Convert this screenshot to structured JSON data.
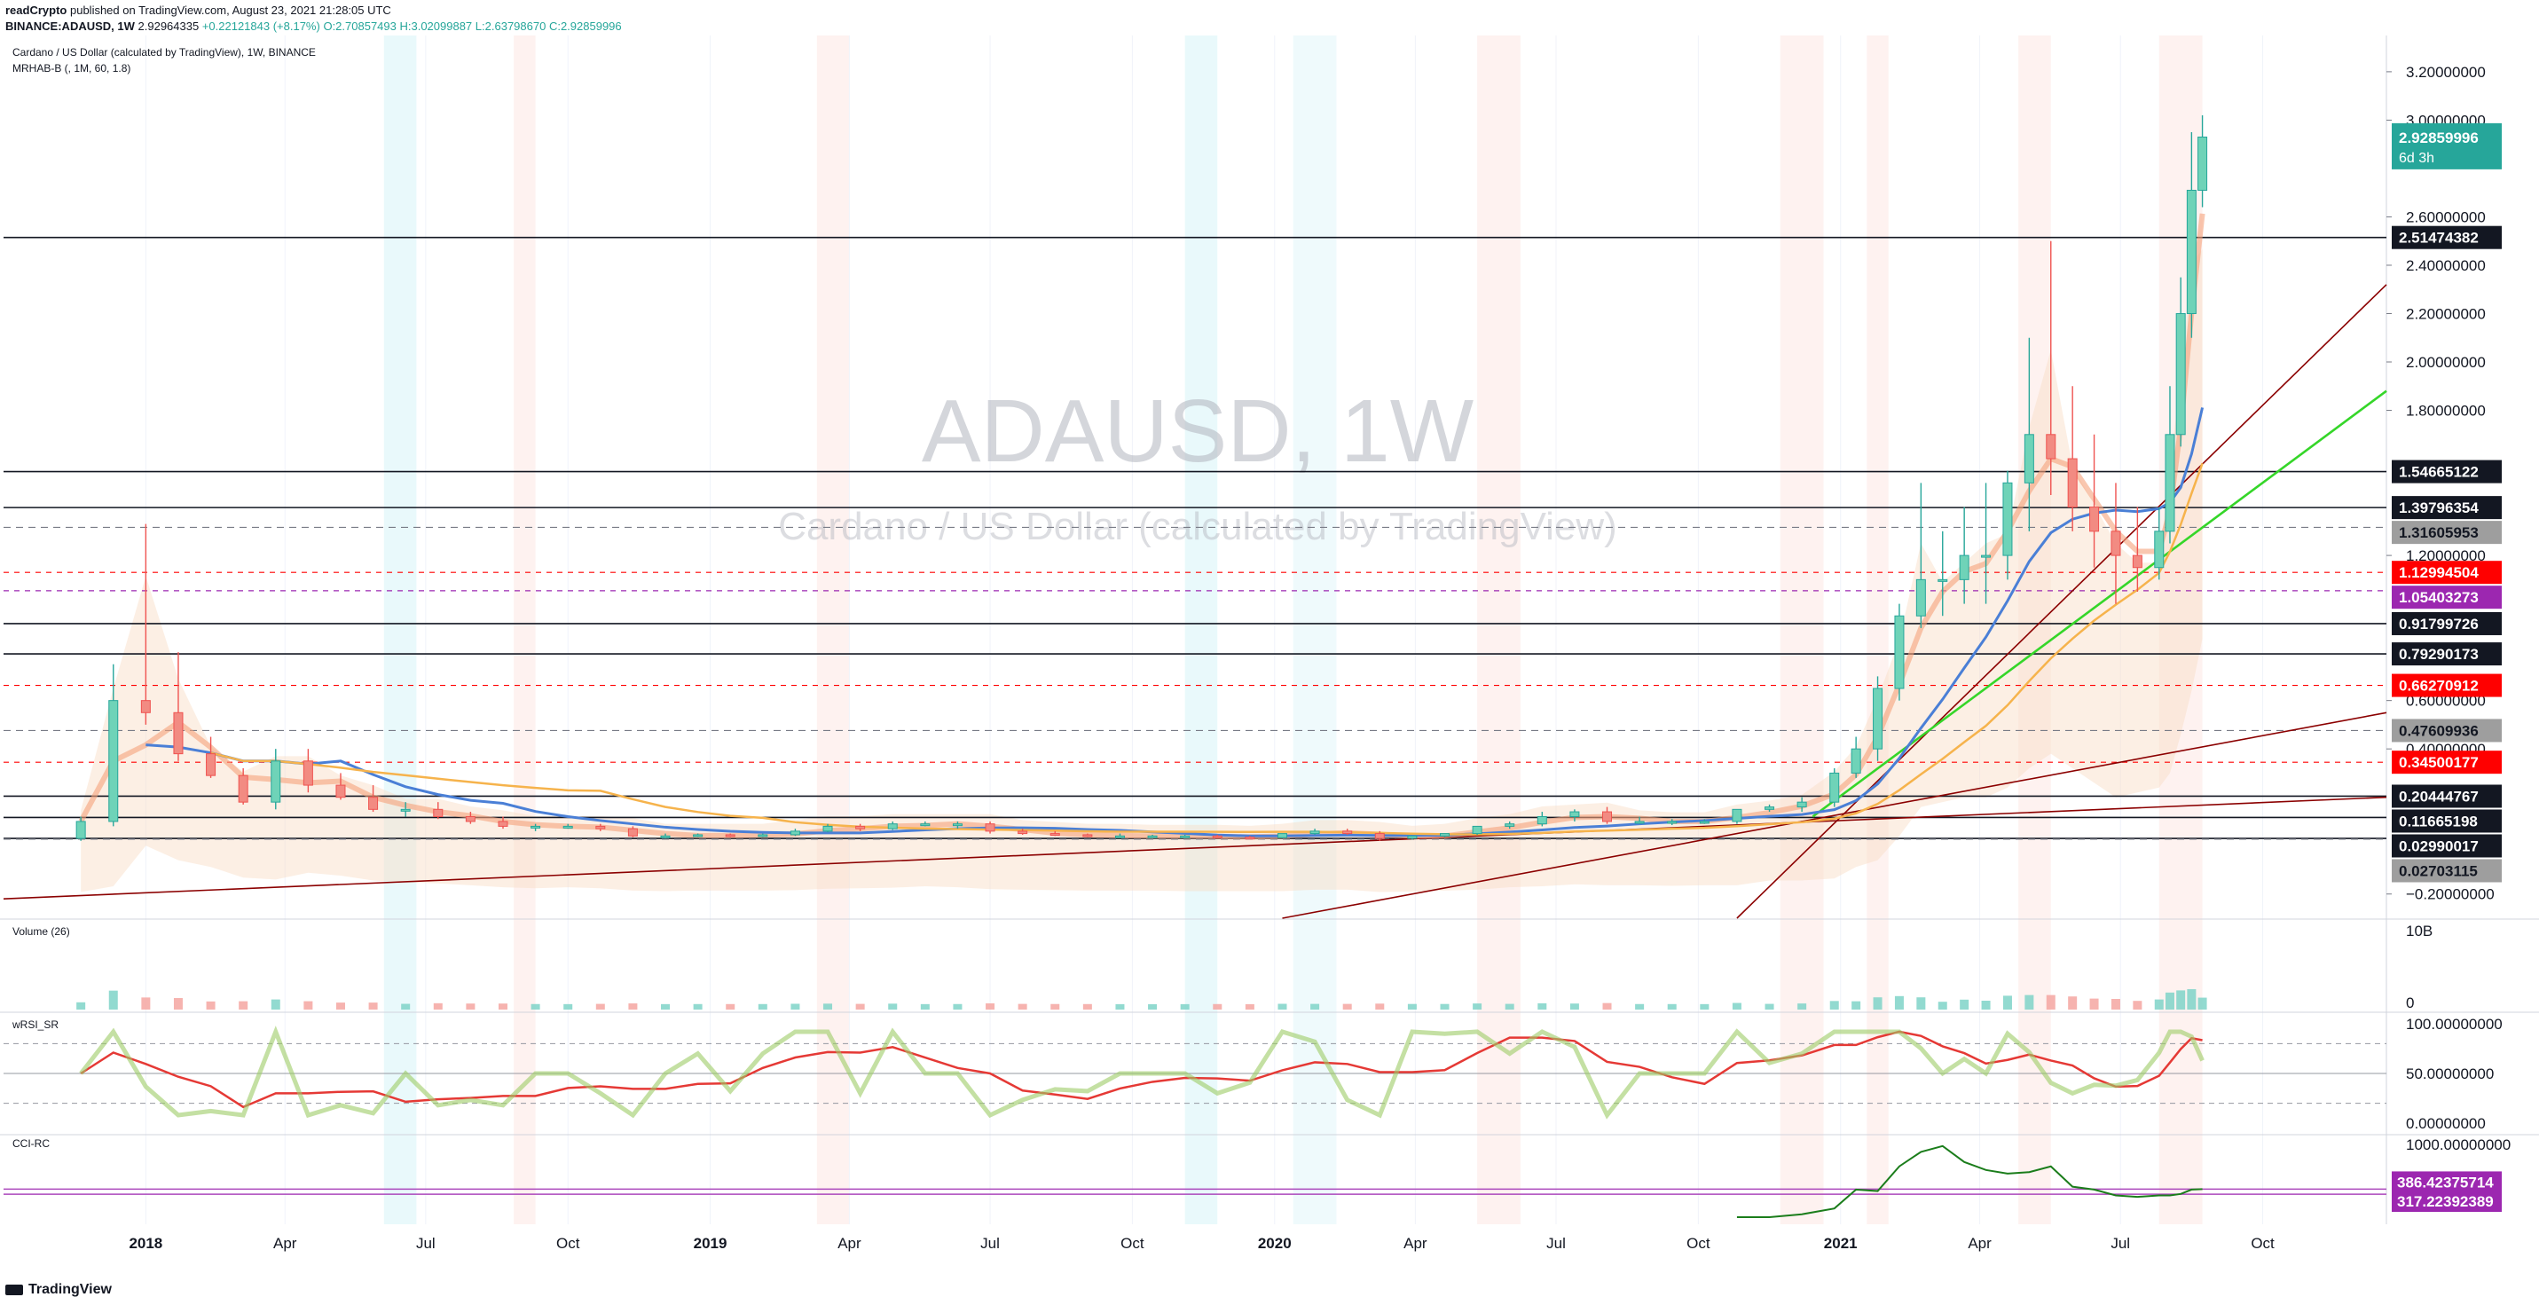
{
  "header": {
    "publisher": "readCrypto",
    "published_text": "published on TradingView.com, August 23, 2021 21:28:05 UTC",
    "symbol_line": "BINANCE:ADAUSD, 1W",
    "last_price": "2.92964335",
    "change": "+0.22121843 (+8.17%)",
    "open": "O:2.70857493",
    "high": "H:3.02099887",
    "low": "L:2.63798670",
    "close": "C:2.92859996"
  },
  "legend": {
    "instrument": "Cardano / US Dollar (calculated by TradingView), 1W, BINANCE",
    "indicator": "MRHAB-B (, 1M, 60, 1.8)",
    "volume_label": "Volume (26)",
    "rsi_label": "wRSI_SR",
    "cci_label": "CCI-RC"
  },
  "watermark": {
    "title": "ADAUSD, 1W",
    "subtitle": "Cardano / US Dollar (calculated by TradingView)"
  },
  "footer": {
    "brand": "TradingView"
  },
  "colors": {
    "up": "#26a69a",
    "down": "#ef5350",
    "cyan": "#6fd3e0",
    "salmon": "#f5a27c",
    "blue": "#4a7fd6",
    "orange": "#f6b34c",
    "green": "#35d629",
    "darkred": "#8b0000",
    "red_label": "#ff0000",
    "purple_label": "#9c27b0",
    "teal_label": "#26a69a",
    "grey_label": "#9e9e9e",
    "black_label": "#131722"
  },
  "chart_data": [
    {
      "type": "candlestick",
      "title": "ADAUSD, 1W",
      "subtitle": "Cardano / US Dollar (calculated by TradingView)",
      "xlabel": "",
      "ylabel": "",
      "x_tick_labels": [
        "2018",
        "Apr",
        "Jul",
        "Oct",
        "2019",
        "Apr",
        "Jul",
        "Oct",
        "2020",
        "Apr",
        "Jul",
        "Oct",
        "2021",
        "Apr",
        "Jul",
        "Oct"
      ],
      "y_tick_labels": [
        "3.20000000",
        "3.00000000",
        "2.60000000",
        "2.40000000",
        "2.20000000",
        "2.00000000",
        "1.80000000",
        "1.20000000",
        "0.60000000",
        "0.40000000",
        "-0.20000000"
      ],
      "ylim": [
        -0.3,
        3.35
      ],
      "dates": [
        "2017-11-20",
        "2017-12-11",
        "2018-01-01",
        "2018-01-22",
        "2018-02-12",
        "2018-03-05",
        "2018-03-26",
        "2018-04-16",
        "2018-05-07",
        "2018-05-28",
        "2018-06-18",
        "2018-07-09",
        "2018-07-30",
        "2018-08-20",
        "2018-09-10",
        "2018-10-01",
        "2018-10-22",
        "2018-11-12",
        "2018-12-03",
        "2018-12-24",
        "2019-01-14",
        "2019-02-04",
        "2019-02-25",
        "2019-03-18",
        "2019-04-08",
        "2019-04-29",
        "2019-05-20",
        "2019-06-10",
        "2019-07-01",
        "2019-07-22",
        "2019-08-12",
        "2019-09-02",
        "2019-09-23",
        "2019-10-14",
        "2019-11-04",
        "2019-11-25",
        "2019-12-16",
        "2020-01-06",
        "2020-01-27",
        "2020-02-17",
        "2020-03-09",
        "2020-03-30",
        "2020-04-20",
        "2020-05-11",
        "2020-06-01",
        "2020-06-22",
        "2020-07-13",
        "2020-08-03",
        "2020-08-24",
        "2020-09-14",
        "2020-10-05",
        "2020-10-26",
        "2020-11-16",
        "2020-12-07",
        "2020-12-28",
        "2021-01-11",
        "2021-01-25",
        "2021-02-08",
        "2021-02-22",
        "2021-03-08",
        "2021-03-22",
        "2021-04-05",
        "2021-04-19",
        "2021-05-03",
        "2021-05-17",
        "2021-05-31",
        "2021-06-14",
        "2021-06-28",
        "2021-07-12",
        "2021-07-26",
        "2021-08-02",
        "2021-08-09",
        "2021-08-16",
        "2021-08-23"
      ],
      "series": [
        {
          "name": "ADAUSD",
          "open": [
            0.03,
            0.1,
            0.6,
            0.55,
            0.38,
            0.29,
            0.18,
            0.35,
            0.25,
            0.2,
            0.15,
            0.15,
            0.12,
            0.1,
            0.08,
            0.08,
            0.08,
            0.07,
            0.04,
            0.04,
            0.045,
            0.04,
            0.045,
            0.06,
            0.08,
            0.07,
            0.09,
            0.09,
            0.09,
            0.06,
            0.05,
            0.045,
            0.04,
            0.04,
            0.04,
            0.04,
            0.035,
            0.033,
            0.05,
            0.06,
            0.05,
            0.03,
            0.04,
            0.05,
            0.08,
            0.09,
            0.12,
            0.14,
            0.1,
            0.1,
            0.1,
            0.1,
            0.15,
            0.16,
            0.18,
            0.3,
            0.4,
            0.65,
            0.95,
            1.1,
            1.1,
            1.2,
            1.2,
            1.5,
            1.7,
            1.6,
            1.4,
            1.3,
            1.2,
            1.15,
            1.3,
            1.7,
            2.2,
            2.71
          ],
          "high": [
            0.12,
            0.75,
            1.33,
            0.8,
            0.45,
            0.32,
            0.4,
            0.4,
            0.3,
            0.25,
            0.18,
            0.18,
            0.14,
            0.12,
            0.09,
            0.09,
            0.09,
            0.08,
            0.05,
            0.05,
            0.05,
            0.05,
            0.07,
            0.09,
            0.09,
            0.1,
            0.1,
            0.1,
            0.1,
            0.07,
            0.06,
            0.05,
            0.05,
            0.045,
            0.045,
            0.045,
            0.04,
            0.05,
            0.07,
            0.07,
            0.06,
            0.04,
            0.05,
            0.08,
            0.1,
            0.14,
            0.15,
            0.16,
            0.12,
            0.11,
            0.11,
            0.15,
            0.17,
            0.2,
            0.32,
            0.45,
            0.7,
            1.0,
            1.5,
            1.3,
            1.4,
            1.5,
            1.55,
            2.1,
            2.5,
            1.9,
            1.7,
            1.5,
            1.4,
            1.4,
            1.9,
            2.35,
            2.95,
            3.02
          ],
          "low": [
            0.02,
            0.08,
            0.5,
            0.35,
            0.28,
            0.17,
            0.15,
            0.22,
            0.19,
            0.14,
            0.12,
            0.11,
            0.09,
            0.07,
            0.06,
            0.07,
            0.06,
            0.035,
            0.03,
            0.035,
            0.035,
            0.035,
            0.04,
            0.055,
            0.06,
            0.065,
            0.08,
            0.07,
            0.05,
            0.045,
            0.04,
            0.035,
            0.035,
            0.035,
            0.03,
            0.03,
            0.03,
            0.03,
            0.045,
            0.045,
            0.02,
            0.025,
            0.035,
            0.045,
            0.07,
            0.08,
            0.1,
            0.09,
            0.09,
            0.085,
            0.09,
            0.09,
            0.14,
            0.14,
            0.16,
            0.28,
            0.35,
            0.6,
            0.9,
            0.95,
            1.0,
            1.0,
            1.1,
            1.3,
            1.45,
            1.3,
            1.15,
            1.0,
            1.05,
            1.1,
            1.25,
            1.65,
            2.1,
            2.64
          ],
          "close": [
            0.1,
            0.6,
            0.55,
            0.38,
            0.29,
            0.18,
            0.35,
            0.25,
            0.2,
            0.15,
            0.15,
            0.12,
            0.1,
            0.08,
            0.08,
            0.08,
            0.07,
            0.04,
            0.04,
            0.045,
            0.04,
            0.045,
            0.06,
            0.08,
            0.07,
            0.09,
            0.09,
            0.09,
            0.06,
            0.05,
            0.045,
            0.04,
            0.04,
            0.04,
            0.04,
            0.035,
            0.033,
            0.05,
            0.06,
            0.05,
            0.03,
            0.04,
            0.05,
            0.08,
            0.09,
            0.12,
            0.14,
            0.1,
            0.1,
            0.1,
            0.1,
            0.15,
            0.16,
            0.18,
            0.3,
            0.4,
            0.65,
            0.95,
            1.1,
            1.1,
            1.2,
            1.2,
            1.5,
            1.7,
            1.6,
            1.4,
            1.3,
            1.2,
            1.15,
            1.3,
            1.7,
            2.2,
            2.71,
            2.93
          ]
        }
      ],
      "horizontal_levels": [
        {
          "value": "2.51474382",
          "style": "black"
        },
        {
          "value": "1.54665122",
          "style": "black"
        },
        {
          "value": "1.39796354",
          "style": "black"
        },
        {
          "value": "1.31605953",
          "style": "grey"
        },
        {
          "value": "1.12994504",
          "style": "red"
        },
        {
          "value": "1.05403273",
          "style": "purple"
        },
        {
          "value": "0.91799726",
          "style": "black"
        },
        {
          "value": "0.79290173",
          "style": "black"
        },
        {
          "value": "0.66270912",
          "style": "red"
        },
        {
          "value": "0.47609936",
          "style": "grey"
        },
        {
          "value": "0.34500177",
          "style": "red"
        },
        {
          "value": "0.20444767",
          "style": "black"
        },
        {
          "value": "0.11665198",
          "style": "black"
        },
        {
          "value": "0.02990017",
          "style": "black"
        },
        {
          "value": "0.02703115",
          "style": "grey"
        }
      ],
      "last_price_label": {
        "value": "2.92859996",
        "countdown": "6d 3h"
      }
    },
    {
      "type": "bar",
      "title": "Volume (26)",
      "y_tick_labels": [
        "10B",
        "0"
      ]
    },
    {
      "type": "line",
      "title": "wRSI_SR",
      "y_tick_labels": [
        "100.00000000",
        "50.00000000",
        "0.00000000"
      ],
      "ylim": [
        0,
        100
      ]
    },
    {
      "type": "line",
      "title": "CCI-RC",
      "y_tick_labels": [
        "1000.00000000"
      ],
      "value_labels": [
        "386.42375714",
        "317.22392389"
      ]
    }
  ]
}
